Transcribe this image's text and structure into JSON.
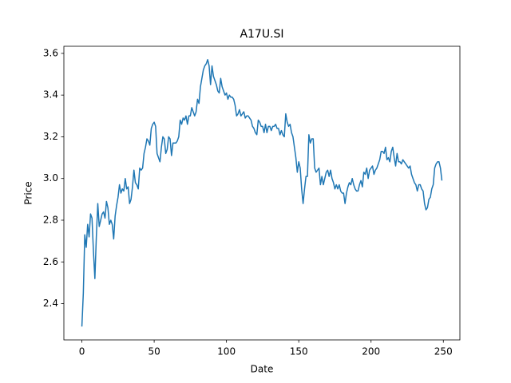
{
  "chart_data": {
    "type": "line",
    "title": "A17U.SI",
    "x_label": "Date",
    "y_label": "Price",
    "x": [
      0,
      1,
      2,
      3,
      4,
      5,
      6,
      7,
      8,
      9,
      10,
      11,
      12,
      13,
      14,
      15,
      16,
      17,
      18,
      19,
      20,
      21,
      22,
      23,
      24,
      25,
      26,
      27,
      28,
      29,
      30,
      31,
      32,
      33,
      34,
      35,
      36,
      37,
      38,
      39,
      40,
      41,
      42,
      43,
      44,
      45,
      46,
      47,
      48,
      49,
      50,
      51,
      52,
      53,
      54,
      55,
      56,
      57,
      58,
      59,
      60,
      61,
      62,
      63,
      64,
      65,
      66,
      67,
      68,
      69,
      70,
      71,
      72,
      73,
      74,
      75,
      76,
      77,
      78,
      79,
      80,
      81,
      82,
      83,
      84,
      85,
      86,
      87,
      88,
      89,
      90,
      91,
      92,
      93,
      94,
      95,
      96,
      97,
      98,
      99,
      100,
      101,
      102,
      103,
      104,
      105,
      106,
      107,
      108,
      109,
      110,
      111,
      112,
      113,
      114,
      115,
      116,
      117,
      118,
      119,
      120,
      121,
      122,
      123,
      124,
      125,
      126,
      127,
      128,
      129,
      130,
      131,
      132,
      133,
      134,
      135,
      136,
      137,
      138,
      139,
      140,
      141,
      142,
      143,
      144,
      145,
      146,
      147,
      148,
      149,
      150,
      151,
      152,
      153,
      154,
      155,
      156,
      157,
      158,
      159,
      160,
      161,
      162,
      163,
      164,
      165,
      166,
      167,
      168,
      169,
      170,
      171,
      172,
      173,
      174,
      175,
      176,
      177,
      178,
      179,
      180,
      181,
      182,
      183,
      184,
      185,
      186,
      187,
      188,
      189,
      190,
      191,
      192,
      193,
      194,
      195,
      196,
      197,
      198,
      199,
      200,
      201,
      202,
      203,
      204,
      205,
      206,
      207,
      208,
      209,
      210,
      211,
      212,
      213,
      214,
      215,
      216,
      217,
      218,
      219,
      220,
      221,
      222,
      223,
      224,
      225,
      226,
      227,
      228,
      229,
      230,
      231,
      232,
      233,
      234,
      235,
      236,
      237,
      238,
      239,
      240,
      241,
      242,
      243,
      244,
      245,
      246,
      247,
      248,
      249
    ],
    "series": [
      {
        "color": "#1f77b4",
        "values": [
          2.29,
          2.45,
          2.73,
          2.67,
          2.78,
          2.72,
          2.83,
          2.81,
          2.65,
          2.52,
          2.72,
          2.88,
          2.77,
          2.8,
          2.83,
          2.84,
          2.81,
          2.89,
          2.86,
          2.78,
          2.8,
          2.78,
          2.71,
          2.82,
          2.87,
          2.91,
          2.97,
          2.93,
          2.95,
          2.94,
          3.0,
          2.95,
          2.96,
          2.88,
          2.9,
          2.96,
          3.04,
          2.98,
          2.97,
          2.95,
          3.05,
          3.04,
          3.05,
          3.12,
          3.15,
          3.19,
          3.18,
          3.16,
          3.24,
          3.26,
          3.27,
          3.25,
          3.12,
          3.1,
          3.08,
          3.15,
          3.2,
          3.19,
          3.12,
          3.14,
          3.2,
          3.19,
          3.11,
          3.17,
          3.17,
          3.17,
          3.18,
          3.2,
          3.28,
          3.26,
          3.29,
          3.28,
          3.3,
          3.26,
          3.3,
          3.3,
          3.34,
          3.32,
          3.3,
          3.32,
          3.38,
          3.36,
          3.44,
          3.48,
          3.52,
          3.54,
          3.55,
          3.57,
          3.54,
          3.45,
          3.54,
          3.49,
          3.47,
          3.45,
          3.42,
          3.41,
          3.48,
          3.44,
          3.42,
          3.4,
          3.41,
          3.38,
          3.4,
          3.39,
          3.39,
          3.38,
          3.35,
          3.3,
          3.31,
          3.33,
          3.3,
          3.31,
          3.32,
          3.29,
          3.3,
          3.3,
          3.29,
          3.28,
          3.25,
          3.24,
          3.22,
          3.21,
          3.28,
          3.27,
          3.25,
          3.25,
          3.22,
          3.26,
          3.22,
          3.25,
          3.25,
          3.23,
          3.25,
          3.25,
          3.26,
          3.24,
          3.24,
          3.21,
          3.23,
          3.21,
          3.2,
          3.31,
          3.27,
          3.25,
          3.26,
          3.22,
          3.2,
          3.15,
          3.1,
          3.03,
          3.08,
          3.05,
          2.95,
          2.88,
          2.95,
          3.01,
          3.01,
          3.21,
          3.17,
          3.19,
          3.19,
          3.05,
          3.03,
          3.04,
          3.05,
          2.97,
          3.01,
          2.97,
          3.0,
          3.03,
          3.04,
          3.01,
          3.04,
          3.0,
          2.98,
          2.95,
          2.97,
          2.95,
          2.97,
          2.94,
          2.93,
          2.93,
          2.88,
          2.93,
          2.96,
          2.98,
          2.97,
          3.0,
          2.97,
          2.95,
          2.94,
          2.94,
          2.97,
          2.99,
          2.96,
          3.03,
          3.02,
          3.05,
          3.0,
          3.04,
          3.05,
          3.06,
          3.02,
          3.04,
          3.05,
          3.07,
          3.09,
          3.13,
          3.13,
          3.12,
          3.15,
          3.09,
          3.1,
          3.08,
          3.13,
          3.15,
          3.1,
          3.06,
          3.12,
          3.08,
          3.08,
          3.07,
          3.09,
          3.08,
          3.07,
          3.06,
          3.05,
          3.06,
          3.02,
          3.0,
          2.98,
          2.97,
          2.94,
          2.97,
          2.97,
          2.95,
          2.94,
          2.88,
          2.85,
          2.86,
          2.9,
          2.91,
          2.95,
          2.97,
          3.05,
          3.07,
          3.08,
          3.08,
          3.05,
          2.99
        ]
      }
    ],
    "xlim": [
      -12.45,
      261.45
    ],
    "xticks": [
      0,
      50,
      100,
      150,
      200,
      250
    ],
    "ylim": [
      2.226,
      3.634
    ],
    "yticks": [
      2.4,
      2.6,
      2.8,
      {
        "value": 3,
        "label": "3.0"
      },
      3.2,
      3.4,
      3.6
    ]
  }
}
